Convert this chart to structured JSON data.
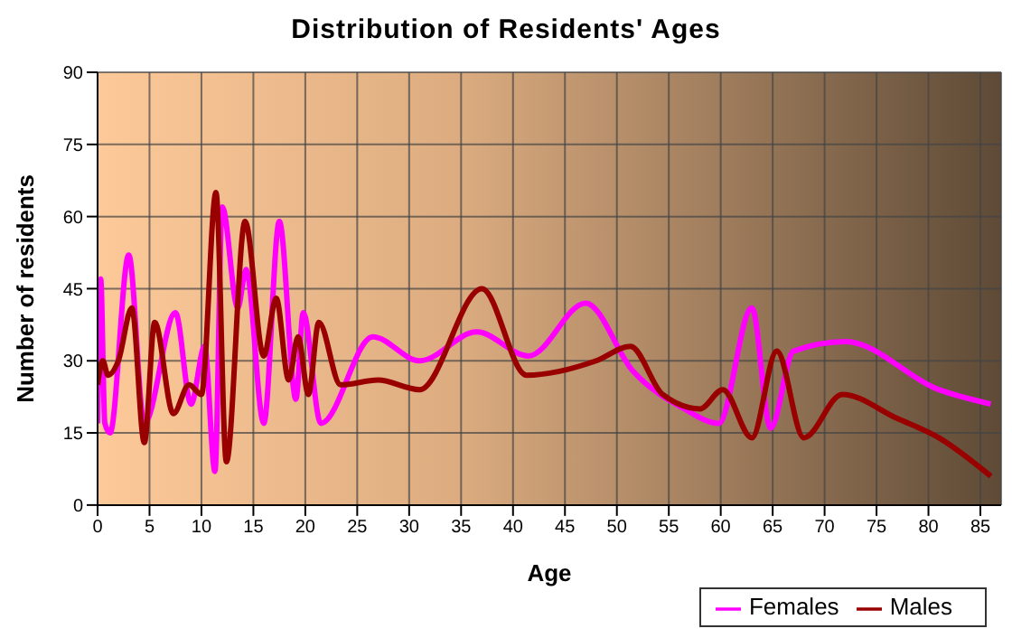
{
  "chart_data": {
    "type": "line",
    "title": "Distribution of Residents' Ages",
    "xlabel": "Age",
    "ylabel": "Number of residents",
    "xlim": [
      0,
      87
    ],
    "xticks": [
      0,
      5,
      10,
      15,
      20,
      25,
      30,
      35,
      40,
      45,
      50,
      55,
      60,
      65,
      70,
      75,
      80,
      85
    ],
    "ylim": [
      0,
      90
    ],
    "yticks": [
      0,
      15,
      30,
      45,
      60,
      75,
      90
    ],
    "grid": true,
    "legend": "bottom right",
    "marker": "none",
    "line_style": "solid",
    "series": [
      {
        "name": "Males",
        "color": "#990000",
        "x": [
          0,
          0.5,
          1,
          2,
          3.3,
          4.5,
          5.5,
          7.3,
          8.8,
          10,
          11.4,
          12.4,
          14.2,
          16,
          17.2,
          18.4,
          19.3,
          20.3,
          21.3,
          23.4,
          27,
          31,
          37,
          41.3,
          48,
          51.3,
          54.4,
          58,
          60.2,
          63,
          65.4,
          68,
          71.7,
          77,
          81,
          86
        ],
        "values": [
          25,
          30,
          27,
          30,
          41,
          13,
          38,
          19,
          25,
          23,
          65,
          9,
          59,
          31,
          43,
          26,
          35,
          23,
          38,
          25,
          26,
          24,
          45,
          27,
          30,
          33,
          23,
          20,
          24,
          14,
          32,
          14,
          23,
          18,
          14,
          6
        ]
      },
      {
        "name": "Females",
        "color": "#ff00ff",
        "x": [
          0,
          0.3,
          0.7,
          1.2,
          3,
          4.5,
          7.5,
          9,
          10.3,
          11.3,
          12,
          13.5,
          14.3,
          16,
          17.5,
          19.1,
          19.8,
          21.5,
          26.5,
          31,
          36.5,
          41.5,
          47,
          51.5,
          56.5,
          59.8,
          63,
          64.8,
          67,
          72,
          81,
          86
        ],
        "values": [
          17,
          47,
          17,
          15,
          52,
          17,
          40,
          21,
          33,
          7,
          62,
          41,
          49,
          17,
          59,
          22,
          40,
          17,
          35,
          30,
          36,
          31,
          42,
          28,
          20,
          17,
          41,
          16,
          32,
          34,
          24,
          21
        ]
      }
    ]
  }
}
